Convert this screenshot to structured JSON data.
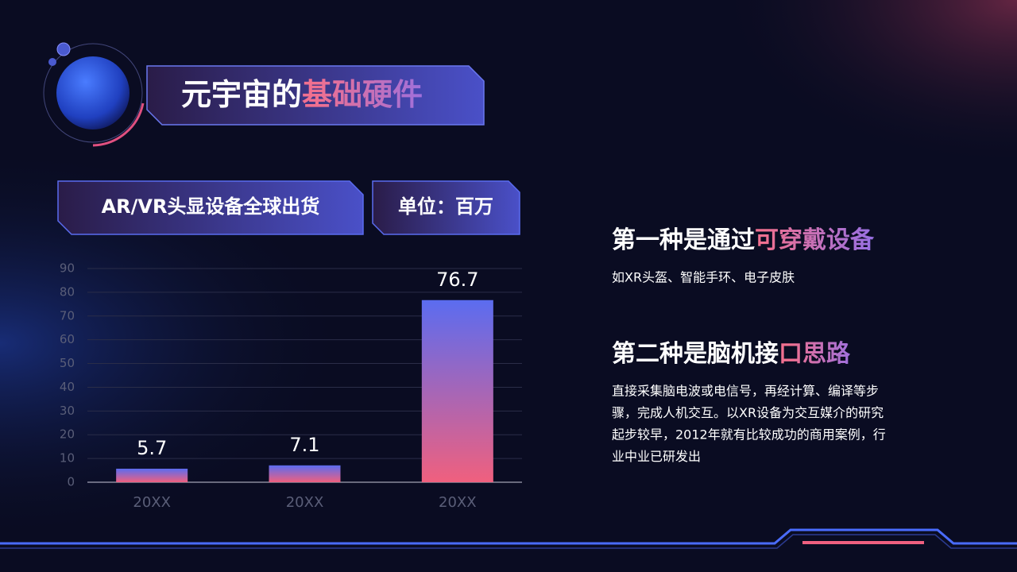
{
  "header": {
    "title_plain": "元宇宙的",
    "title_highlight": "基础硬件"
  },
  "chart_data": {
    "type": "bar",
    "title": "AR/VR头显设备全球出货",
    "unit": "单位：百万",
    "categories": [
      "20XX",
      "20XX",
      "20XX"
    ],
    "values": [
      5.7,
      7.1,
      76.7
    ],
    "ylim": [
      0,
      90
    ],
    "yticks": [
      0,
      10,
      20,
      30,
      40,
      50,
      60,
      70,
      80,
      90
    ],
    "grid": true,
    "color_top": "#5b6cf0",
    "color_bottom": "#f0607e"
  },
  "points": [
    {
      "heading_plain": "第一种是通过",
      "heading_highlight": "可穿戴设备",
      "lines": [
        "如XR头盔、智能手环、电子皮肤"
      ]
    },
    {
      "heading_plain": "第二种是脑机接",
      "heading_highlight": "口思路",
      "lines": [
        "直接采集脑电波或电信号，再经计算、编译等步",
        "骤，完成人机交互。以XR设备为交互媒介的研究",
        "起步较早，2012年就有比较成功的商用案例，行",
        "业中业已研发出"
      ]
    }
  ]
}
